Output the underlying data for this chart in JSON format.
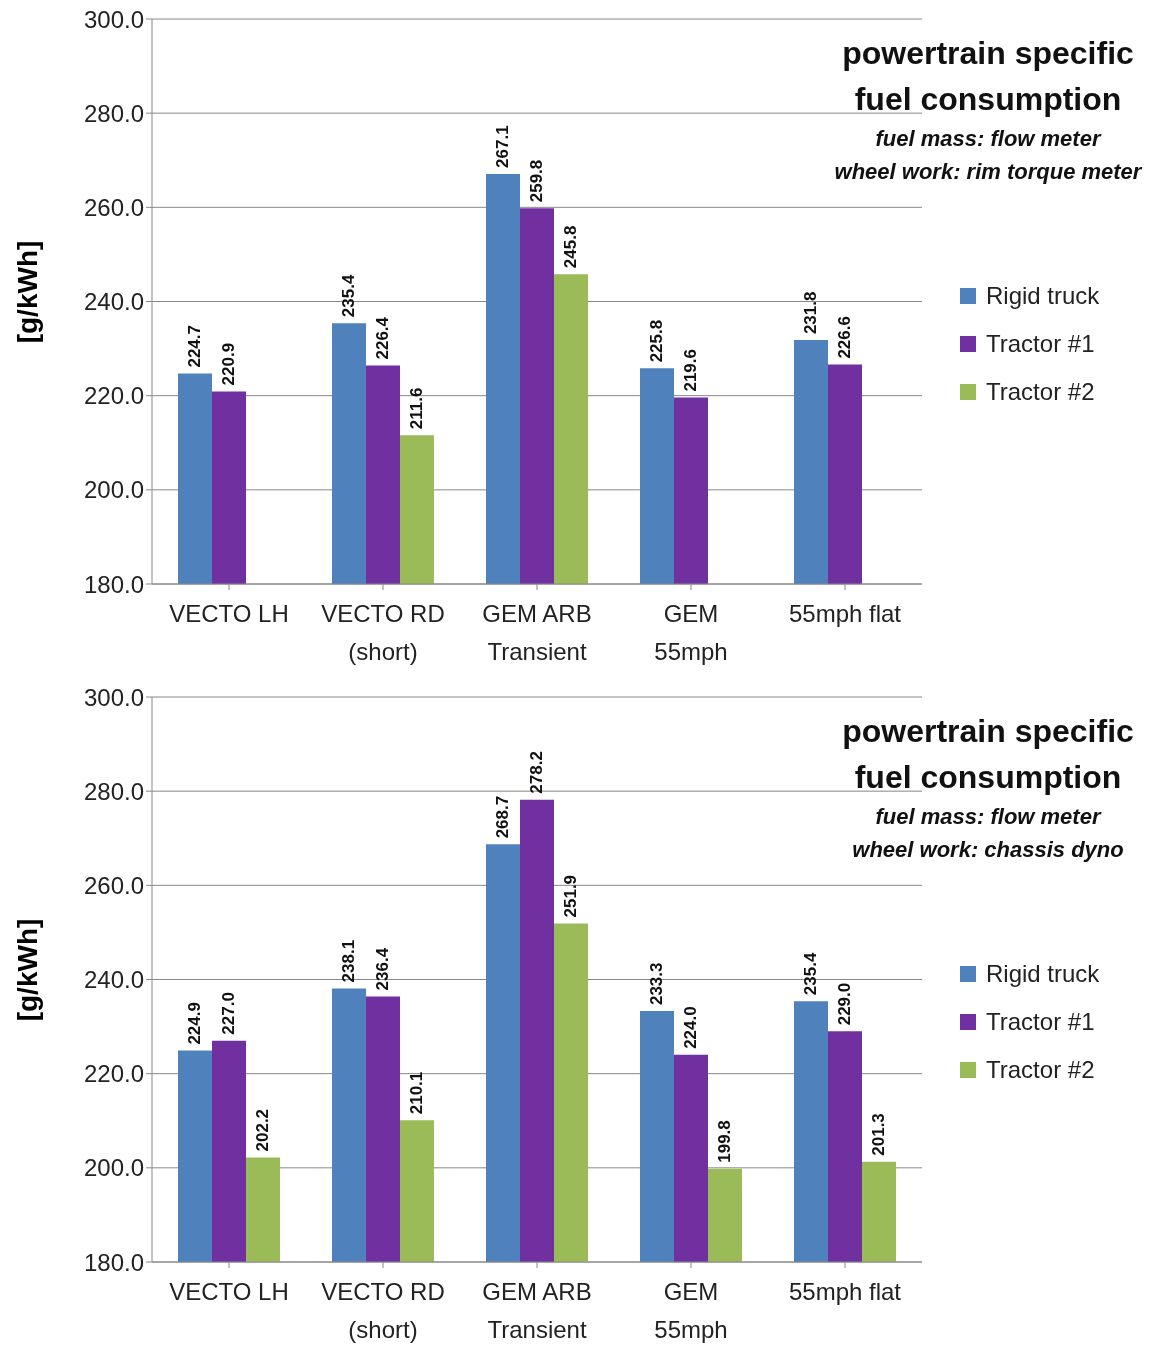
{
  "chart_data": [
    {
      "type": "bar",
      "title": "powertrain specific fuel consumption",
      "subtitle": "fuel mass: flow meter\nwheel work: rim torque meter",
      "ylabel": "[g/kWh]",
      "categories": [
        "VECTO LH",
        "VECTO RD\n(short)",
        "GEM ARB\nTransient",
        "GEM\n55mph",
        "55mph flat"
      ],
      "series": [
        {
          "name": "Rigid truck",
          "color": "#4f81bd",
          "values": [
            224.7,
            235.4,
            267.1,
            225.8,
            231.8
          ],
          "value_labels": [
            "224.7",
            "235.4",
            "267.1",
            "225.8",
            "231.8"
          ]
        },
        {
          "name": "Tractor #1",
          "color": "#7030a0",
          "values": [
            220.9,
            226.4,
            259.8,
            219.6,
            226.6
          ],
          "value_labels": [
            "220.9",
            "226.4",
            "259.8",
            "219.6",
            "226.6"
          ]
        },
        {
          "name": "Tractor #2",
          "color": "#9bbb59",
          "values": [
            null,
            211.6,
            245.8,
            null,
            null
          ],
          "value_labels": [
            null,
            "211.6",
            "245.8",
            null,
            null
          ]
        }
      ],
      "ylim": [
        180,
        300
      ],
      "yticks": [
        {
          "value": 180,
          "label": "180.0"
        },
        {
          "value": 200,
          "label": "200.0"
        },
        {
          "value": 220,
          "label": "220.0"
        },
        {
          "value": 240,
          "label": "240.0"
        },
        {
          "value": 260,
          "label": "260.0"
        },
        {
          "value": 280,
          "label": "280.0"
        },
        {
          "value": 300,
          "label": "300.0"
        }
      ],
      "grid": "y",
      "legend": "right"
    },
    {
      "type": "bar",
      "title": "powertrain specific fuel consumption",
      "subtitle": "fuel mass: flow meter\nwheel work: chassis dyno",
      "ylabel": "[g/kWh]",
      "categories": [
        "VECTO LH",
        "VECTO RD\n(short)",
        "GEM ARB\nTransient",
        "GEM\n55mph",
        "55mph flat"
      ],
      "series": [
        {
          "name": "Rigid truck",
          "color": "#4f81bd",
          "values": [
            224.9,
            238.1,
            268.7,
            233.3,
            235.4
          ],
          "value_labels": [
            "224.9",
            "238.1",
            "268.7",
            "233.3",
            "235.4"
          ]
        },
        {
          "name": "Tractor #1",
          "color": "#7030a0",
          "values": [
            227.0,
            236.4,
            278.2,
            224.0,
            229.0
          ],
          "value_labels": [
            "227.0",
            "236.4",
            "278.2",
            "224.0",
            "229.0"
          ]
        },
        {
          "name": "Tractor #2",
          "color": "#9bbb59",
          "values": [
            202.2,
            210.1,
            251.9,
            199.8,
            201.3
          ],
          "value_labels": [
            "202.2",
            "210.1",
            "251.9",
            "199.8",
            "201.3"
          ]
        }
      ],
      "ylim": [
        180,
        300
      ],
      "yticks": [
        {
          "value": 180,
          "label": "180.0"
        },
        {
          "value": 200,
          "label": "200.0"
        },
        {
          "value": 220,
          "label": "220.0"
        },
        {
          "value": 240,
          "label": "240.0"
        },
        {
          "value": 260,
          "label": "260.0"
        },
        {
          "value": 280,
          "label": "280.0"
        },
        {
          "value": 300,
          "label": "300.0"
        }
      ],
      "grid": "y",
      "legend": "right"
    }
  ]
}
